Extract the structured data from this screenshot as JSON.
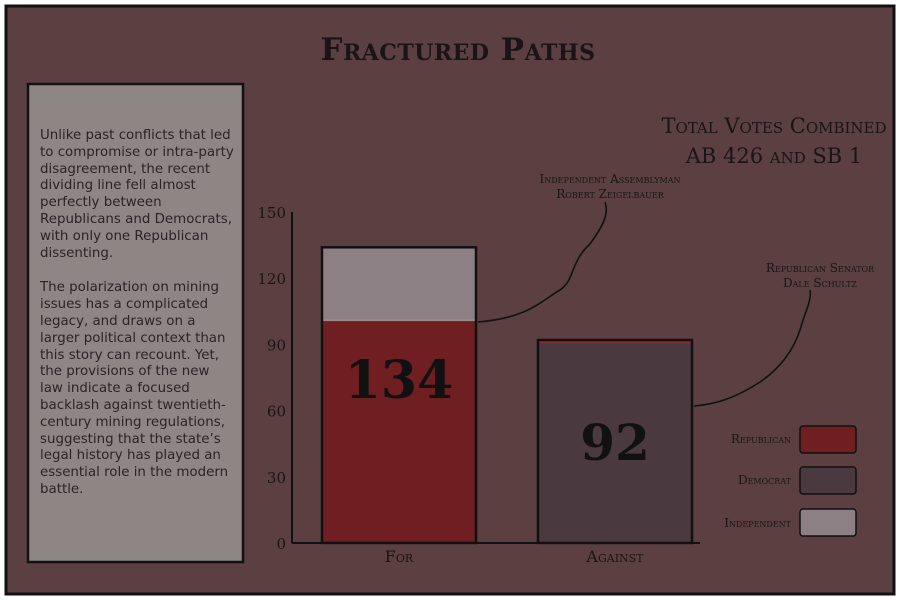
{
  "title": "Fractured Paths",
  "sidebar": {
    "paragraphs": [
      "Unlike past conflicts that led to compromise or intra-party disagreement, the recent dividing line fell almost perfectly between Republicans and Democrats, with only one Republican dissenting.",
      "The polarization on mining issues has a complicated legacy, and draws on a larger political context than this story can recount. Yet, the provisions of the new law indicate a focused backlash against twentieth-century mining regulations, suggesting that the state’s legal history has played an essential role in the modern battle."
    ]
  },
  "colors": {
    "background": "#5c3f40",
    "panel": "#8e8585",
    "republican": "#6f1e22",
    "democrat": "#4a3a3f",
    "independent": "#8c8084",
    "divider_for": "#9a8a88",
    "divider_against": "#8c2a2c"
  },
  "annotations": {
    "independent_line1": "Independent Assemblyman",
    "independent_line2": "Robert Zeigelbauer",
    "republican_line1": "Republican Senator",
    "republican_line2": "Dale Schultz"
  },
  "legend": {
    "republican": "Republican",
    "democrat": "Democrat",
    "independent": "Independent"
  },
  "chart_data": {
    "type": "bar",
    "stacked": true,
    "title_line1": "Total Votes Combined",
    "title_line2": "AB 426 and SB 1",
    "categories": [
      "For",
      "Against"
    ],
    "totals": [
      134,
      92
    ],
    "series": [
      {
        "name": "Republican",
        "values": [
          101,
          1
        ]
      },
      {
        "name": "Democrat",
        "values": [
          0,
          91
        ]
      },
      {
        "name": "Independent",
        "values": [
          33,
          0
        ]
      }
    ],
    "ylim": [
      0,
      150
    ],
    "yticks": [
      0,
      30,
      60,
      90,
      120,
      150
    ],
    "grid": false,
    "legend_position": "bottom-right"
  }
}
